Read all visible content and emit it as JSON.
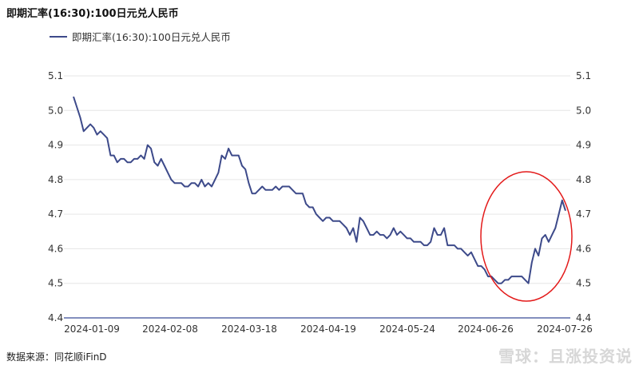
{
  "title": "即期汇率(16:30):100日元兑人民币",
  "legend": {
    "label": "即期汇率(16:30):100日元兑人民币",
    "color": "#3d4a8a"
  },
  "source_text": "数据来源：同花顺iFinD",
  "watermark_text": "雪球：且涨投资说",
  "highlight": {
    "shape": "ellipse",
    "color": "#e31a1a",
    "note_region": "2024-06-26 to 2024-07-26"
  },
  "chart_data": {
    "type": "line",
    "title": "即期汇率(16:30):100日元兑人民币",
    "xlabel": "",
    "ylabel": "",
    "ylim": [
      4.4,
      5.1
    ],
    "yticks": [
      "5.1",
      "5.0",
      "4.9",
      "4.8",
      "4.7",
      "4.6",
      "4.5",
      "4.4"
    ],
    "yticks_right": [
      "5.1",
      "5.0",
      "4.9",
      "4.8",
      "4.7",
      "4.6",
      "4.5",
      "4.4"
    ],
    "xticks": [
      "2024-01-09",
      "2024-02-08",
      "2024-03-18",
      "2024-04-19",
      "2024-05-24",
      "2024-06-26",
      "2024-07-26"
    ],
    "grid": true,
    "legend_position": "top-left",
    "series": [
      {
        "name": "即期汇率(16:30):100日元兑人民币",
        "color": "#3d4a8a",
        "values": [
          5.04,
          5.01,
          4.98,
          4.94,
          4.95,
          4.96,
          4.95,
          4.93,
          4.94,
          4.93,
          4.92,
          4.87,
          4.87,
          4.85,
          4.86,
          4.86,
          4.85,
          4.85,
          4.86,
          4.86,
          4.87,
          4.86,
          4.9,
          4.89,
          4.85,
          4.84,
          4.86,
          4.84,
          4.82,
          4.8,
          4.79,
          4.79,
          4.79,
          4.78,
          4.78,
          4.79,
          4.79,
          4.78,
          4.8,
          4.78,
          4.79,
          4.78,
          4.8,
          4.82,
          4.87,
          4.86,
          4.89,
          4.87,
          4.87,
          4.87,
          4.84,
          4.83,
          4.79,
          4.76,
          4.76,
          4.77,
          4.78,
          4.77,
          4.77,
          4.77,
          4.78,
          4.77,
          4.78,
          4.78,
          4.78,
          4.77,
          4.76,
          4.76,
          4.76,
          4.73,
          4.72,
          4.72,
          4.7,
          4.69,
          4.68,
          4.69,
          4.69,
          4.68,
          4.68,
          4.68,
          4.67,
          4.66,
          4.64,
          4.66,
          4.62,
          4.69,
          4.68,
          4.66,
          4.64,
          4.64,
          4.65,
          4.64,
          4.64,
          4.63,
          4.64,
          4.66,
          4.64,
          4.65,
          4.64,
          4.63,
          4.63,
          4.62,
          4.62,
          4.62,
          4.61,
          4.61,
          4.62,
          4.66,
          4.64,
          4.64,
          4.66,
          4.61,
          4.61,
          4.61,
          4.6,
          4.6,
          4.59,
          4.58,
          4.59,
          4.57,
          4.55,
          4.55,
          4.54,
          4.52,
          4.52,
          4.51,
          4.5,
          4.5,
          4.51,
          4.51,
          4.52,
          4.52,
          4.52,
          4.52,
          4.51,
          4.5,
          4.56,
          4.6,
          4.58,
          4.63,
          4.64,
          4.62,
          4.64,
          4.66,
          4.7,
          4.74,
          4.71
        ]
      }
    ]
  }
}
